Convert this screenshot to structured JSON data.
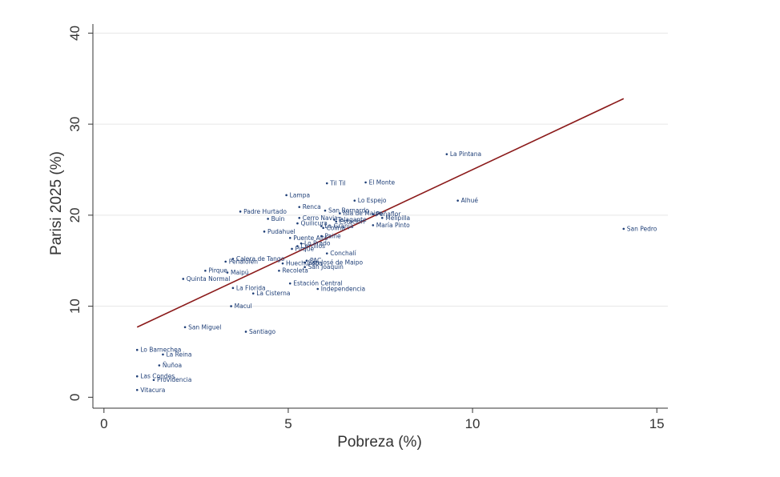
{
  "chart_data": {
    "type": "scatter",
    "title": "",
    "xlabel": "Pobreza (%)",
    "ylabel": "Parisi 2025 (%)",
    "xlim": [
      -0.3,
      15.3
    ],
    "ylim": [
      -1.2,
      41.0
    ],
    "xticks": [
      0,
      5,
      10,
      15
    ],
    "yticks": [
      0,
      10,
      20,
      30,
      40
    ],
    "grid": "horizontal",
    "fit_line": {
      "x": [
        0.9,
        14.1
      ],
      "y": [
        7.7,
        32.8
      ]
    },
    "points": [
      {
        "label": "San Pedro",
        "x": 14.1,
        "y": 18.5
      },
      {
        "label": "La Pintana",
        "x": 9.3,
        "y": 26.7
      },
      {
        "label": "Alhué",
        "x": 9.6,
        "y": 21.6
      },
      {
        "label": "El Monte",
        "x": 7.1,
        "y": 23.6
      },
      {
        "label": "Til Til",
        "x": 6.05,
        "y": 23.5
      },
      {
        "label": "Lo Espejo",
        "x": 6.8,
        "y": 21.6
      },
      {
        "label": "Lampa",
        "x": 4.95,
        "y": 22.2
      },
      {
        "label": "Renca",
        "x": 5.3,
        "y": 20.9
      },
      {
        "label": "San Bernardo",
        "x": 6.0,
        "y": 20.5
      },
      {
        "label": "Padre Hurtado",
        "x": 3.7,
        "y": 20.4
      },
      {
        "label": "Isla de Maipo",
        "x": 6.4,
        "y": 20.2
      },
      {
        "label": "Peñaflor",
        "x": 7.3,
        "y": 20.1
      },
      {
        "label": "Melipilla",
        "x": 7.55,
        "y": 19.7
      },
      {
        "label": "Cerro Navia",
        "x": 5.3,
        "y": 19.7
      },
      {
        "label": "Buin",
        "x": 4.45,
        "y": 19.6
      },
      {
        "label": "Talagante",
        "x": 6.25,
        "y": 19.5
      },
      {
        "label": "Estación",
        "x": 6.3,
        "y": 19.3
      },
      {
        "label": "Quilicura",
        "x": 5.25,
        "y": 19.1
      },
      {
        "label": "La Granja",
        "x": 5.9,
        "y": 18.8
      },
      {
        "label": "María Pinto",
        "x": 7.3,
        "y": 18.9
      },
      {
        "label": "Colina",
        "x": 5.95,
        "y": 18.6
      },
      {
        "label": "Pudahuel",
        "x": 4.35,
        "y": 18.2
      },
      {
        "label": "Paine",
        "x": 5.9,
        "y": 17.7
      },
      {
        "label": "Puente Alto",
        "x": 5.05,
        "y": 17.5
      },
      {
        "label": "Lo Prado",
        "x": 5.35,
        "y": 16.9
      },
      {
        "label": "Cerrillos",
        "x": 5.25,
        "y": 16.6
      },
      {
        "label": "Pirque",
        "x": 5.1,
        "y": 16.3
      },
      {
        "label": "Calera de Tango",
        "x": 3.5,
        "y": 15.2
      },
      {
        "label": "Conchalí",
        "x": 6.05,
        "y": 15.8
      },
      {
        "label": "Peñalolén",
        "x": 3.3,
        "y": 14.9
      },
      {
        "label": "Huechuraba",
        "x": 4.85,
        "y": 14.7
      },
      {
        "label": "San José de Maipo",
        "x": 5.45,
        "y": 14.8
      },
      {
        "label": "PAC",
        "x": 5.5,
        "y": 15.0
      },
      {
        "label": "San Joaquín",
        "x": 5.45,
        "y": 14.3
      },
      {
        "label": "Recoleta",
        "x": 4.75,
        "y": 13.9
      },
      {
        "label": "Pirque",
        "x": 2.75,
        "y": 13.9
      },
      {
        "label": "Maipú",
        "x": 3.35,
        "y": 13.7
      },
      {
        "label": "Quinta Normal",
        "x": 2.15,
        "y": 13.0
      },
      {
        "label": "Estación Central",
        "x": 5.05,
        "y": 12.5
      },
      {
        "label": "La Florida",
        "x": 3.5,
        "y": 12.0
      },
      {
        "label": "Independencia",
        "x": 5.8,
        "y": 11.9
      },
      {
        "label": "La Cisterna",
        "x": 4.05,
        "y": 11.4
      },
      {
        "label": "Macul",
        "x": 3.45,
        "y": 10.0
      },
      {
        "label": "San Miguel",
        "x": 2.2,
        "y": 7.7
      },
      {
        "label": "Santiago",
        "x": 3.85,
        "y": 7.2
      },
      {
        "label": "Lo Barnechea",
        "x": 0.9,
        "y": 5.2
      },
      {
        "label": "La Reina",
        "x": 1.6,
        "y": 4.7
      },
      {
        "label": "Ñuñoa",
        "x": 1.5,
        "y": 3.5
      },
      {
        "label": "Las Condes",
        "x": 0.9,
        "y": 2.3
      },
      {
        "label": "Providencia",
        "x": 1.35,
        "y": 1.9
      },
      {
        "label": "Vitacura",
        "x": 0.9,
        "y": 0.8
      }
    ]
  }
}
